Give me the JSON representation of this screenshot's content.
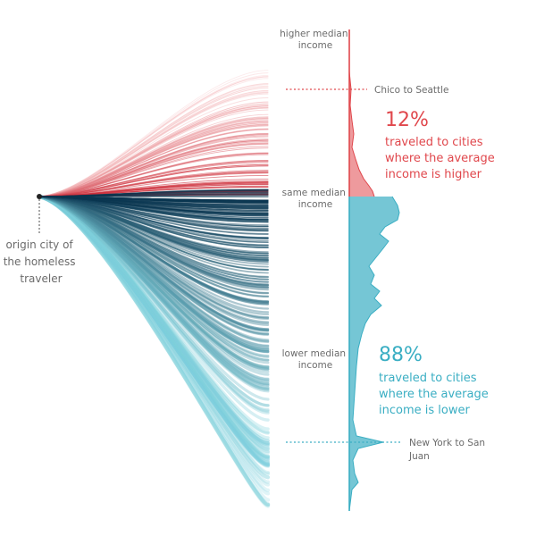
{
  "chart_data": {
    "type": "flow-and-distribution",
    "origin_label": [
      "origin city of",
      "the homeless",
      "traveler"
    ],
    "axis_labels": {
      "top": [
        "higher median",
        "income"
      ],
      "middle": [
        "same median",
        "income"
      ],
      "bottom": [
        "lower median",
        "income"
      ]
    },
    "higher": {
      "percent_text": "12%",
      "caption": [
        "traveled to cities",
        "where the average",
        "income is higher"
      ],
      "color": "#e0474c",
      "share": 0.12
    },
    "lower": {
      "percent_text": "88%",
      "caption": [
        "traveled to cities",
        "where the average",
        "income is lower"
      ],
      "color": "#3aaec3",
      "share": 0.88
    },
    "annotations": [
      {
        "text": [
          "Chico to Seattle"
        ],
        "side": "higher"
      },
      {
        "text": [
          "New York to San",
          "Juan"
        ],
        "side": "lower"
      }
    ],
    "flow_colors": {
      "higher_light": "#f4b7ba",
      "higher_dark": "#c9212e",
      "lower_light": "#7fd0dc",
      "lower_dark": "#0a3550"
    }
  }
}
